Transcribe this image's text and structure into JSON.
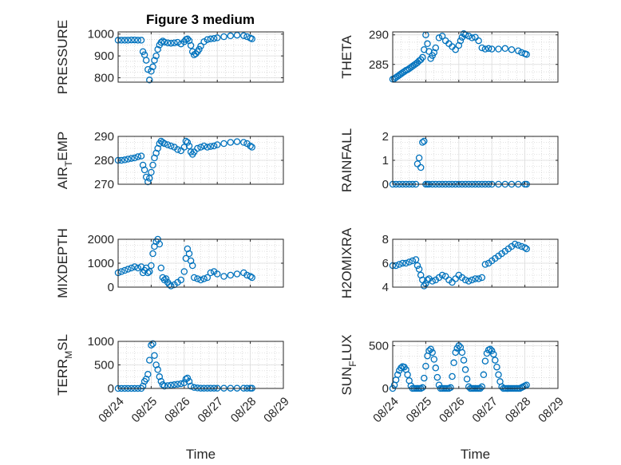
{
  "figure": {
    "title": "Figure 3 medium",
    "marker_color": "#0072BD",
    "marker": "circle"
  },
  "chart_data": [
    {
      "type": "scatter",
      "ylabel": "PRESSURE",
      "ylim": [
        780,
        1010
      ],
      "yticks": [
        800,
        900,
        1000
      ],
      "xlim": [
        0,
        5
      ],
      "xticks": [
        0,
        1,
        2,
        3,
        4,
        5
      ],
      "xticklabels": [
        "08/24",
        "08/25",
        "08/26",
        "08/27",
        "08/28",
        "08/29"
      ],
      "xlabel": "",
      "grid": "on",
      "series": [
        {
          "x": [
            0,
            0.1,
            0.2,
            0.3,
            0.4,
            0.5,
            0.6,
            0.7,
            0.75,
            0.8,
            0.85,
            0.9,
            0.95,
            1.0,
            1.05,
            1.1,
            1.15,
            1.2,
            1.25,
            1.3,
            1.35,
            1.4,
            1.5,
            1.6,
            1.7,
            1.8,
            1.9,
            2.0,
            2.05,
            2.1,
            2.15,
            2.2,
            2.25,
            2.3,
            2.35,
            2.4,
            2.45,
            2.5,
            2.6,
            2.7,
            2.8,
            2.9,
            3.0,
            3.2,
            3.4,
            3.6,
            3.8,
            3.9,
            4.0,
            4.05
          ],
          "y": [
            972,
            972,
            972,
            972,
            973,
            973,
            972,
            972,
            920,
            905,
            880,
            838,
            790,
            830,
            850,
            880,
            900,
            930,
            950,
            962,
            968,
            963,
            960,
            958,
            960,
            962,
            955,
            965,
            975,
            978,
            970,
            948,
            920,
            905,
            910,
            920,
            930,
            945,
            965,
            975,
            978,
            980,
            983,
            988,
            992,
            995,
            993,
            988,
            982,
            978
          ]
        }
      ]
    },
    {
      "type": "scatter",
      "ylabel": "THETA",
      "ylim": [
        282,
        290.5
      ],
      "yticks": [
        285,
        290
      ],
      "xlim": [
        0,
        5
      ],
      "xticks": [
        0,
        1,
        2,
        3,
        4,
        5
      ],
      "xticklabels": [
        "08/24",
        "08/25",
        "08/26",
        "08/27",
        "08/28",
        "08/29"
      ],
      "xlabel": "",
      "grid": "on",
      "series": [
        {
          "x": [
            0,
            0.05,
            0.1,
            0.15,
            0.2,
            0.25,
            0.3,
            0.35,
            0.4,
            0.45,
            0.5,
            0.55,
            0.6,
            0.65,
            0.7,
            0.75,
            0.8,
            0.85,
            0.9,
            0.95,
            1.0,
            1.05,
            1.1,
            1.15,
            1.2,
            1.25,
            1.3,
            1.4,
            1.5,
            1.6,
            1.7,
            1.8,
            1.9,
            2.0,
            2.05,
            2.1,
            2.15,
            2.2,
            2.3,
            2.4,
            2.5,
            2.6,
            2.7,
            2.8,
            2.9,
            3.0,
            3.2,
            3.4,
            3.6,
            3.8,
            3.9,
            4.0,
            4.05
          ],
          "y": [
            282.5,
            282.6,
            282.8,
            283.0,
            283.2,
            283.4,
            283.6,
            283.8,
            284.0,
            284.1,
            284.3,
            284.5,
            284.7,
            284.9,
            285.1,
            285.3,
            285.6,
            285.8,
            286.2,
            287.5,
            290.0,
            288.5,
            287.2,
            286.0,
            286.5,
            287.0,
            287.8,
            289.5,
            289.8,
            289.0,
            288.5,
            288.0,
            287.5,
            288.2,
            289.0,
            289.6,
            290.2,
            290.0,
            289.8,
            289.5,
            289.6,
            289.0,
            287.8,
            287.6,
            287.7,
            287.6,
            287.6,
            287.7,
            287.5,
            287.3,
            287.0,
            286.8,
            286.7
          ]
        }
      ]
    },
    {
      "type": "scatter",
      "ylabel": "AIR_TEMP",
      "ylim": [
        270,
        290
      ],
      "yticks": [
        270,
        280,
        290
      ],
      "xlim": [
        0,
        5
      ],
      "xticks": [
        0,
        1,
        2,
        3,
        4,
        5
      ],
      "xticklabels": [
        "08/24",
        "08/25",
        "08/26",
        "08/27",
        "08/28",
        "08/29"
      ],
      "xlabel": "",
      "grid": "on",
      "series": [
        {
          "x": [
            0,
            0.1,
            0.2,
            0.3,
            0.4,
            0.5,
            0.6,
            0.7,
            0.75,
            0.8,
            0.85,
            0.9,
            0.95,
            1.0,
            1.05,
            1.1,
            1.15,
            1.2,
            1.25,
            1.3,
            1.35,
            1.4,
            1.5,
            1.6,
            1.7,
            1.8,
            1.9,
            2.0,
            2.05,
            2.1,
            2.15,
            2.2,
            2.25,
            2.3,
            2.4,
            2.5,
            2.6,
            2.7,
            2.8,
            2.9,
            3.0,
            3.2,
            3.4,
            3.6,
            3.8,
            3.9,
            4.0,
            4.05
          ],
          "y": [
            280,
            280,
            280.2,
            280.5,
            280.8,
            281,
            281.5,
            281.8,
            278,
            276,
            273,
            271,
            272.5,
            275,
            278,
            281,
            283,
            285,
            287,
            288,
            287.5,
            287,
            286.5,
            286,
            285.5,
            284.5,
            284,
            285.5,
            288,
            287.5,
            286,
            283.5,
            282.5,
            283.5,
            285,
            285.5,
            286,
            285.5,
            285.8,
            286,
            286.5,
            287,
            287.5,
            287.8,
            287.5,
            287,
            286,
            285.5
          ]
        }
      ]
    },
    {
      "type": "scatter",
      "ylabel": "RAINFALL",
      "ylim": [
        0,
        2
      ],
      "yticks": [
        0,
        1,
        2
      ],
      "xlim": [
        0,
        5
      ],
      "xticks": [
        0,
        1,
        2,
        3,
        4,
        5
      ],
      "xticklabels": [
        "08/24",
        "08/25",
        "08/26",
        "08/27",
        "08/28",
        "08/29"
      ],
      "xlabel": "",
      "grid": "on",
      "series": [
        {
          "x": [
            0,
            0.1,
            0.2,
            0.3,
            0.4,
            0.5,
            0.6,
            0.7,
            0.75,
            0.8,
            0.85,
            0.9,
            0.95,
            1.0,
            1.05,
            1.1,
            1.2,
            1.3,
            1.4,
            1.5,
            1.6,
            1.7,
            1.8,
            1.9,
            2.0,
            2.1,
            2.2,
            2.3,
            2.4,
            2.5,
            2.6,
            2.7,
            2.8,
            2.9,
            3.0,
            3.2,
            3.4,
            3.6,
            3.8,
            4.0,
            4.05
          ],
          "y": [
            0,
            0,
            0,
            0,
            0,
            0,
            0,
            0,
            0.85,
            1.1,
            0.7,
            1.75,
            1.8,
            0,
            0,
            0,
            0,
            0,
            0,
            0,
            0,
            0,
            0,
            0,
            0,
            0,
            0,
            0,
            0,
            0,
            0,
            0,
            0,
            0,
            0,
            0,
            0,
            0,
            0,
            0,
            0
          ]
        }
      ]
    },
    {
      "type": "scatter",
      "ylabel": "MIXDEPTH",
      "ylim": [
        0,
        2000
      ],
      "yticks": [
        0,
        1000,
        2000
      ],
      "xlim": [
        0,
        5
      ],
      "xticks": [
        0,
        1,
        2,
        3,
        4,
        5
      ],
      "xticklabels": [
        "08/24",
        "08/25",
        "08/26",
        "08/27",
        "08/28",
        "08/29"
      ],
      "xlabel": "",
      "grid": "on",
      "series": [
        {
          "x": [
            0,
            0.1,
            0.2,
            0.3,
            0.4,
            0.5,
            0.6,
            0.7,
            0.75,
            0.8,
            0.85,
            0.9,
            0.95,
            1.0,
            1.05,
            1.1,
            1.15,
            1.2,
            1.25,
            1.3,
            1.35,
            1.4,
            1.45,
            1.5,
            1.55,
            1.6,
            1.7,
            1.8,
            1.9,
            2.0,
            2.05,
            2.1,
            2.15,
            2.2,
            2.25,
            2.3,
            2.4,
            2.5,
            2.6,
            2.7,
            2.8,
            2.9,
            3.0,
            3.2,
            3.4,
            3.6,
            3.8,
            3.9,
            4.0,
            4.05
          ],
          "y": [
            600,
            650,
            700,
            750,
            800,
            850,
            800,
            850,
            600,
            700,
            800,
            600,
            650,
            900,
            1400,
            1700,
            1900,
            2000,
            1800,
            800,
            400,
            300,
            350,
            200,
            100,
            50,
            100,
            200,
            300,
            650,
            1200,
            1600,
            1400,
            1100,
            900,
            400,
            350,
            300,
            350,
            400,
            600,
            650,
            550,
            450,
            500,
            550,
            600,
            500,
            450,
            400
          ]
        }
      ]
    },
    {
      "type": "scatter",
      "ylabel": "H2OMIXRA",
      "ylim": [
        4,
        8
      ],
      "yticks": [
        4,
        6,
        8
      ],
      "xlim": [
        0,
        5
      ],
      "xticks": [
        0,
        1,
        2,
        3,
        4,
        5
      ],
      "xticklabels": [
        "08/24",
        "08/25",
        "08/26",
        "08/27",
        "08/28",
        "08/29"
      ],
      "xlabel": "",
      "grid": "on",
      "series": [
        {
          "x": [
            0,
            0.1,
            0.2,
            0.3,
            0.4,
            0.5,
            0.6,
            0.7,
            0.75,
            0.8,
            0.85,
            0.9,
            0.95,
            1.0,
            1.05,
            1.1,
            1.2,
            1.3,
            1.4,
            1.5,
            1.6,
            1.7,
            1.8,
            1.9,
            2.0,
            2.1,
            2.2,
            2.3,
            2.4,
            2.5,
            2.6,
            2.7,
            2.8,
            2.9,
            3.0,
            3.1,
            3.2,
            3.3,
            3.4,
            3.5,
            3.6,
            3.7,
            3.8,
            3.9,
            4.0,
            4.05
          ],
          "y": [
            5.8,
            5.8,
            5.9,
            6.0,
            6.0,
            6.1,
            6.2,
            6.3,
            5.8,
            5.5,
            5.0,
            4.6,
            4.1,
            4.3,
            4.6,
            4.7,
            4.5,
            4.6,
            4.8,
            5.0,
            4.9,
            4.6,
            4.4,
            4.7,
            5.0,
            4.8,
            4.6,
            4.5,
            4.6,
            4.7,
            4.7,
            4.8,
            5.9,
            6.0,
            6.2,
            6.4,
            6.6,
            6.8,
            7.0,
            7.2,
            7.4,
            7.6,
            7.5,
            7.4,
            7.3,
            7.2
          ]
        }
      ]
    },
    {
      "type": "scatter",
      "ylabel": "TERR_MSL",
      "ylim": [
        0,
        1000
      ],
      "yticks": [
        0,
        500,
        1000
      ],
      "xlim": [
        0,
        5
      ],
      "xticks": [
        0,
        1,
        2,
        3,
        4,
        5
      ],
      "xticklabels": [
        "08/24",
        "08/25",
        "08/26",
        "08/27",
        "08/28",
        "08/29"
      ],
      "xlabel": "Time",
      "grid": "on",
      "series": [
        {
          "x": [
            0,
            0.1,
            0.2,
            0.3,
            0.4,
            0.5,
            0.6,
            0.7,
            0.75,
            0.8,
            0.85,
            0.9,
            0.95,
            1.0,
            1.05,
            1.1,
            1.15,
            1.2,
            1.25,
            1.3,
            1.35,
            1.4,
            1.5,
            1.6,
            1.7,
            1.8,
            1.9,
            2.0,
            2.05,
            2.1,
            2.15,
            2.2,
            2.3,
            2.4,
            2.5,
            2.6,
            2.7,
            2.8,
            2.9,
            3.0,
            3.2,
            3.4,
            3.6,
            3.8,
            3.9,
            4.0,
            4.05
          ],
          "y": [
            0,
            0,
            0,
            0,
            0,
            0,
            0,
            0,
            50,
            150,
            200,
            300,
            600,
            920,
            950,
            700,
            500,
            400,
            250,
            150,
            80,
            50,
            60,
            70,
            80,
            90,
            100,
            120,
            200,
            220,
            150,
            50,
            20,
            10,
            5,
            5,
            5,
            5,
            5,
            5,
            5,
            5,
            5,
            5,
            5,
            5,
            5
          ]
        }
      ]
    },
    {
      "type": "scatter",
      "ylabel": "SUN_FLUX",
      "ylim": [
        0,
        550
      ],
      "yticks": [
        0,
        500
      ],
      "xlim": [
        0,
        5
      ],
      "xticks": [
        0,
        1,
        2,
        3,
        4,
        5
      ],
      "xticklabels": [
        "08/24",
        "08/25",
        "08/26",
        "08/27",
        "08/28",
        "08/29"
      ],
      "xlabel": "Time",
      "grid": "on",
      "series": [
        {
          "x": [
            0,
            0.05,
            0.1,
            0.15,
            0.2,
            0.25,
            0.3,
            0.35,
            0.4,
            0.45,
            0.5,
            0.55,
            0.6,
            0.65,
            0.7,
            0.75,
            0.8,
            0.85,
            0.9,
            0.95,
            1.0,
            1.05,
            1.1,
            1.15,
            1.2,
            1.25,
            1.3,
            1.35,
            1.4,
            1.45,
            1.5,
            1.55,
            1.6,
            1.65,
            1.7,
            1.75,
            1.8,
            1.85,
            1.9,
            1.95,
            2.0,
            2.05,
            2.1,
            2.15,
            2.2,
            2.25,
            2.3,
            2.35,
            2.4,
            2.45,
            2.5,
            2.55,
            2.6,
            2.65,
            2.7,
            2.75,
            2.8,
            2.85,
            2.9,
            2.95,
            3.0,
            3.05,
            3.1,
            3.15,
            3.2,
            3.25,
            3.3,
            3.35,
            3.4,
            3.45,
            3.5,
            3.55,
            3.6,
            3.65,
            3.7,
            3.75,
            3.8,
            3.85,
            3.9,
            3.95,
            4.0,
            4.05
          ],
          "y": [
            0,
            40,
            100,
            160,
            210,
            240,
            255,
            250,
            220,
            160,
            90,
            30,
            0,
            0,
            0,
            0,
            0,
            0,
            10,
            120,
            260,
            380,
            440,
            460,
            420,
            340,
            240,
            130,
            40,
            0,
            0,
            0,
            0,
            0,
            0,
            10,
            140,
            300,
            420,
            470,
            500,
            480,
            420,
            330,
            220,
            110,
            20,
            0,
            0,
            0,
            0,
            0,
            0,
            0,
            20,
            160,
            320,
            410,
            450,
            460,
            440,
            400,
            330,
            250,
            160,
            80,
            20,
            0,
            0,
            0,
            0,
            0,
            0,
            0,
            0,
            0,
            0,
            0,
            10,
            20,
            30,
            40
          ]
        }
      ]
    }
  ]
}
